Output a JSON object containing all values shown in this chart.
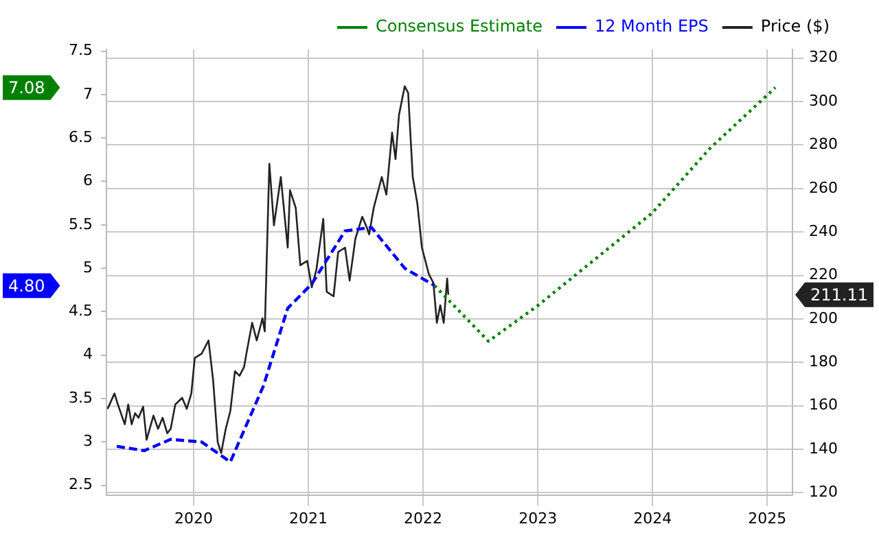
{
  "chart_data": {
    "type": "line",
    "xlim": [
      2019.24,
      2025.22
    ],
    "xticks": [
      2020,
      2021,
      2022,
      2023,
      2024,
      2025
    ],
    "ylim": [
      2.39,
      7.52
    ],
    "yticks": [
      2.5,
      3,
      3.5,
      4,
      4.5,
      5,
      5.5,
      6,
      6.5,
      7,
      7.5
    ],
    "y2lim": [
      119,
      324
    ],
    "y2ticks": [
      120,
      140,
      160,
      180,
      200,
      220,
      240,
      260,
      280,
      300,
      320
    ],
    "grid": true,
    "legend": "top right",
    "marker": "none",
    "series": [
      {
        "name": "Consensus Estimate",
        "color": "#008000",
        "line_style": "dotted",
        "x": [
          2022.1,
          2022.57,
          2023,
          2024,
          2024.5,
          2025.07
        ],
        "values": [
          4.8,
          4.16,
          4.57,
          5.64,
          6.38,
          7.08
        ]
      },
      {
        "name": "12 Month EPS",
        "color": "#0000ff",
        "line_style": "dashed",
        "x": [
          2019.33,
          2019.57,
          2019.8,
          2020.07,
          2020.32,
          2020.61,
          2020.82,
          2021.03,
          2021.32,
          2021.55,
          2021.84,
          2022.1
        ],
        "values": [
          2.95,
          2.9,
          3.03,
          3.0,
          2.77,
          3.65,
          4.54,
          4.82,
          5.43,
          5.47,
          5.0,
          4.8
        ]
      },
      {
        "name": "Price ($)",
        "color": "#222222",
        "line_style": "solid",
        "axis": "y2",
        "x": [
          2019.25,
          2019.31,
          2019.34,
          2019.4,
          2019.43,
          2019.46,
          2019.49,
          2019.52,
          2019.56,
          2019.59,
          2019.65,
          2019.69,
          2019.73,
          2019.77,
          2019.8,
          2019.84,
          2019.9,
          2019.94,
          2019.98,
          2020.01,
          2020.07,
          2020.13,
          2020.17,
          2020.21,
          2020.24,
          2020.28,
          2020.32,
          2020.36,
          2020.4,
          2020.44,
          2020.46,
          2020.51,
          2020.55,
          2020.6,
          2020.62,
          2020.66,
          2020.7,
          2020.76,
          2020.82,
          2020.84,
          2020.89,
          2020.93,
          2020.99,
          2021.03,
          2021.07,
          2021.13,
          2021.16,
          2021.22,
          2021.26,
          2021.32,
          2021.36,
          2021.41,
          2021.47,
          2021.51,
          2021.53,
          2021.57,
          2021.64,
          2021.68,
          2021.73,
          2021.76,
          2021.79,
          2021.84,
          2021.87,
          2021.91,
          2021.95,
          2021.99,
          2022.05,
          2022.09,
          2022.12,
          2022.15,
          2022.18,
          2022.21,
          2022.22
        ],
        "values": [
          158.6,
          165.7,
          160.6,
          151.5,
          160.6,
          151.5,
          156.6,
          154.5,
          159.6,
          144.4,
          155.5,
          149.4,
          154.5,
          147.4,
          149.4,
          160.6,
          163.7,
          158.6,
          165.7,
          182,
          184,
          190.1,
          171.8,
          143.3,
          138.3,
          149.4,
          157.6,
          175.9,
          173.8,
          177.9,
          184,
          198.2,
          190.1,
          200.3,
          194.2,
          271.4,
          243,
          265.3,
          232.8,
          259.2,
          251.1,
          224.7,
          226.7,
          214.5,
          222.6,
          246,
          212.5,
          210.4,
          230.8,
          232.8,
          217.6,
          236.9,
          247,
          242,
          238.9,
          251.1,
          265.3,
          257.2,
          285.7,
          273.5,
          293.8,
          307,
          304,
          265.3,
          253.1,
          232.8,
          220.6,
          216.6,
          198.2,
          206.3,
          198.2,
          218.6,
          211.11
        ]
      }
    ],
    "annotations": [
      "7.08",
      "4.80",
      "211.11"
    ]
  }
}
